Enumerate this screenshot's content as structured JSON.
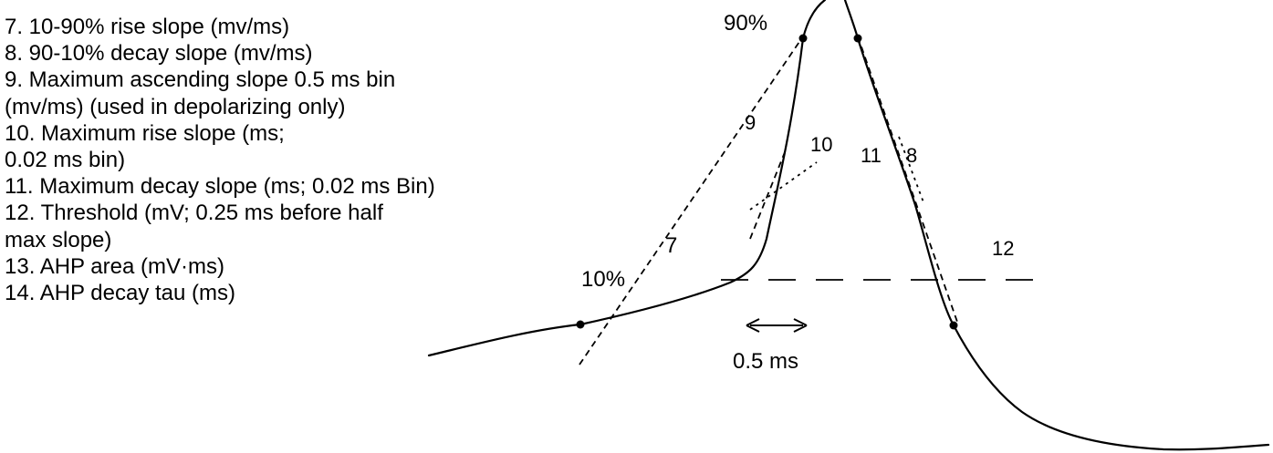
{
  "legend": [
    "7. 10-90% rise slope (mv/ms)",
    "8. 90-10% decay slope (mv/ms)",
    "9. Maximum ascending slope 0.5 ms bin",
    " (mv/ms) (used in depolarizing only)",
    "10. Maximum rise slope (ms;",
    "0.02 ms bin)",
    "11. Maximum decay slope (ms; 0.02 ms Bin)",
    "12. Threshold (mV; 0.25 ms before half",
    "max slope)",
    "13. AHP area (mV·ms)",
    "14. AHP decay tau (ms)"
  ],
  "labels": {
    "pct90": "90%",
    "pct10": "10%",
    "n7": "7",
    "n8": "8",
    "n9": "9",
    "n10": "10",
    "n11": "11",
    "n12": "12",
    "bin": "0.5 ms"
  }
}
